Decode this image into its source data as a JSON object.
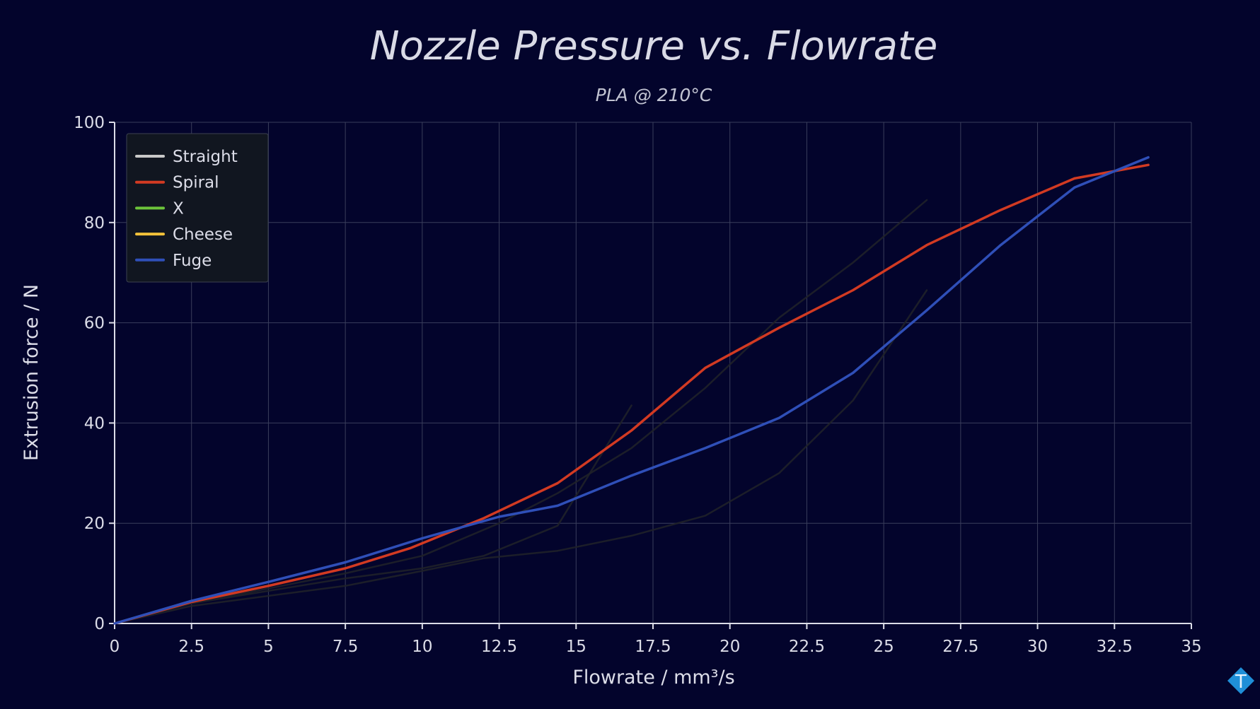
{
  "chart_data": {
    "type": "line",
    "title": "Nozzle Pressure vs. Flowrate",
    "subtitle": "PLA @ 210°C",
    "xlabel": "Flowrate / mm³/s",
    "ylabel": "Extrusion force / N",
    "xlim": [
      0,
      35
    ],
    "ylim": [
      0,
      100
    ],
    "xticks": [
      "0",
      "2.5",
      "5",
      "7.5",
      "10",
      "12.5",
      "15",
      "17.5",
      "20",
      "22.5",
      "25",
      "27.5",
      "30",
      "32.5",
      "35"
    ],
    "yticks": [
      "0",
      "20",
      "40",
      "60",
      "80",
      "100"
    ],
    "grid": true,
    "legend_position": "top-left",
    "series": [
      {
        "name": "Straight",
        "color": "#c8c8c8",
        "highlighted": false,
        "x": [
          0,
          2.5,
          5,
          7.5,
          10,
          12,
          14.4,
          16.8
        ],
        "y": [
          0,
          4,
          6.5,
          9,
          11,
          13.5,
          19.5,
          43.5
        ]
      },
      {
        "name": "Spiral",
        "color": "#d23a22",
        "highlighted": true,
        "x": [
          0,
          2.5,
          5,
          7.5,
          9.6,
          12,
          14.4,
          16.8,
          19.2,
          21.6,
          24,
          26.4,
          28.8,
          31.2,
          33.6
        ],
        "y": [
          0,
          4.3,
          7.5,
          11,
          15,
          21,
          28,
          38.5,
          51,
          59,
          66.5,
          75.5,
          82.5,
          88.8,
          91.5
        ]
      },
      {
        "name": "X",
        "color": "#6cc43a",
        "highlighted": false,
        "x": [
          0,
          2.5,
          5,
          7.5,
          10,
          12.5,
          14.4,
          16.8,
          19.2,
          21.6,
          24,
          26.4
        ],
        "y": [
          0,
          4,
          7,
          10,
          13.5,
          20,
          26,
          35,
          47,
          61,
          72,
          84.5
        ]
      },
      {
        "name": "Cheese",
        "color": "#f2c23a",
        "highlighted": false,
        "x": [
          0,
          2.5,
          5,
          7.5,
          10,
          12,
          14.4,
          16.8,
          19.2,
          21.6,
          24,
          26.4
        ],
        "y": [
          0,
          3.5,
          5.5,
          7.5,
          10.5,
          13,
          14.5,
          17.5,
          21.5,
          30,
          44.5,
          66.5
        ]
      },
      {
        "name": "Fuge",
        "color": "#2f4fb8",
        "highlighted": true,
        "x": [
          0,
          2.5,
          5,
          7.5,
          10,
          12.5,
          14.4,
          16.8,
          19.2,
          21.6,
          24,
          26.4,
          28.8,
          31.2,
          33.6
        ],
        "y": [
          0,
          4.5,
          8.3,
          12.2,
          17,
          21.3,
          23.5,
          29.5,
          35,
          41,
          50,
          62.5,
          75.5,
          87,
          93
        ]
      }
    ]
  },
  "logo": {
    "letter": "T",
    "color": "#1f8fd8"
  }
}
